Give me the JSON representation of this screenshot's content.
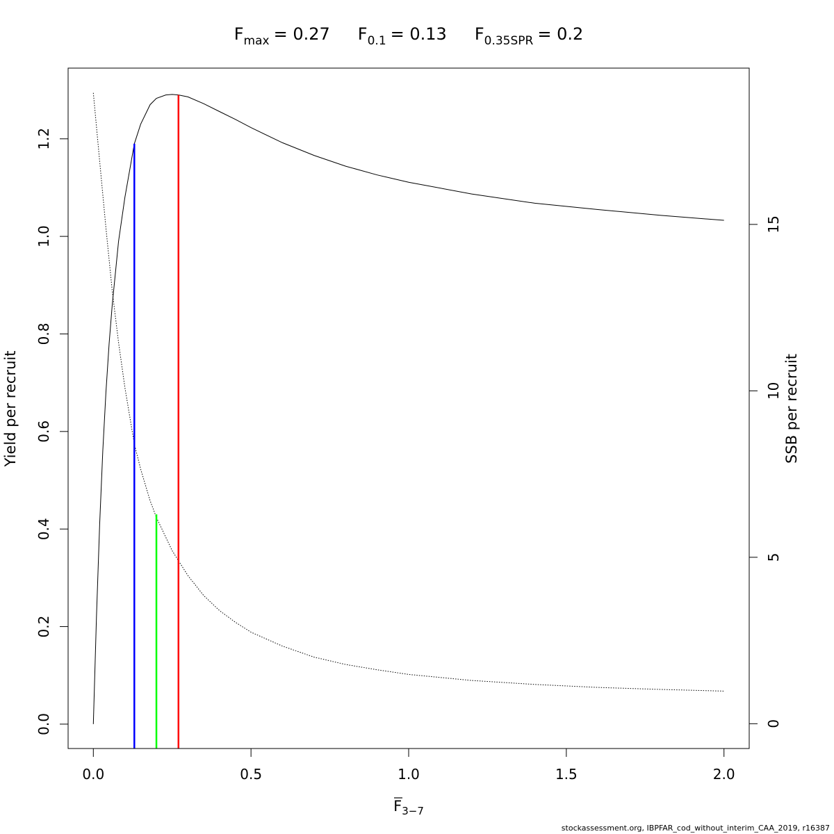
{
  "chart_data": {
    "type": "line",
    "title": {
      "fmax": {
        "base": "F",
        "sub": "max",
        "value": "= 0.27"
      },
      "f01": {
        "base": "F",
        "sub": "0.1",
        "value": "= 0.13"
      },
      "fspr": {
        "base": "F",
        "sub": "0.35SPR",
        "value": "= 0.2"
      }
    },
    "xlabel": {
      "base": "F",
      "sub": "3−7"
    },
    "ylabel": "Yield per recruit",
    "y2label": "SSB per recruit",
    "xlim": [
      -0.08,
      2.08
    ],
    "ylim": [
      -0.05,
      1.345
    ],
    "y2lim": [
      -0.745,
      19.695
    ],
    "x_ticks": [
      {
        "value": 0.0,
        "label": "0.0"
      },
      {
        "value": 0.5,
        "label": "0.5"
      },
      {
        "value": 1.0,
        "label": "1.0"
      },
      {
        "value": 1.5,
        "label": "1.5"
      },
      {
        "value": 2.0,
        "label": "2.0"
      }
    ],
    "y_ticks": [
      {
        "value": 0.0,
        "label": "0.0"
      },
      {
        "value": 0.2,
        "label": "0.2"
      },
      {
        "value": 0.4,
        "label": "0.4"
      },
      {
        "value": 0.6,
        "label": "0.6"
      },
      {
        "value": 0.8,
        "label": "0.8"
      },
      {
        "value": 1.0,
        "label": "1.0"
      },
      {
        "value": 1.2,
        "label": "1.2"
      }
    ],
    "y2_ticks": [
      {
        "value": 0,
        "label": "0"
      },
      {
        "value": 5,
        "label": "5"
      },
      {
        "value": 10,
        "label": "10"
      },
      {
        "value": 15,
        "label": "15"
      }
    ],
    "series": [
      {
        "style": "solid",
        "axis": "left",
        "color": "#000000",
        "x": [
          0,
          0.01,
          0.02,
          0.03,
          0.04,
          0.05,
          0.06,
          0.08,
          0.1,
          0.13,
          0.15,
          0.18,
          0.2,
          0.23,
          0.25,
          0.27,
          0.3,
          0.35,
          0.4,
          0.45,
          0.5,
          0.6,
          0.7,
          0.8,
          0.9,
          1.0,
          1.2,
          1.4,
          1.6,
          1.8,
          2.0
        ],
        "y": [
          0.0,
          0.22,
          0.41,
          0.56,
          0.68,
          0.78,
          0.86,
          0.99,
          1.08,
          1.19,
          1.23,
          1.27,
          1.283,
          1.29,
          1.291,
          1.29,
          1.286,
          1.272,
          1.256,
          1.24,
          1.223,
          1.192,
          1.166,
          1.144,
          1.126,
          1.111,
          1.087,
          1.068,
          1.055,
          1.043,
          1.033
        ]
      },
      {
        "style": "dotted",
        "axis": "right",
        "color": "#000000",
        "x": [
          0,
          0.02,
          0.04,
          0.06,
          0.08,
          0.1,
          0.13,
          0.15,
          0.18,
          0.2,
          0.25,
          0.3,
          0.35,
          0.4,
          0.45,
          0.5,
          0.6,
          0.7,
          0.8,
          0.9,
          1.0,
          1.2,
          1.4,
          1.6,
          1.8,
          2.0
        ],
        "y": [
          18.95,
          16.9,
          14.9,
          13.0,
          11.45,
          10.1,
          8.4,
          7.65,
          6.7,
          6.2,
          5.2,
          4.45,
          3.85,
          3.4,
          3.05,
          2.75,
          2.33,
          2.0,
          1.78,
          1.62,
          1.48,
          1.3,
          1.18,
          1.09,
          1.03,
          0.98
        ]
      }
    ],
    "reference_lines": [
      {
        "name": "F0.1",
        "x": 0.13,
        "y_top": 1.19,
        "color": "#0000FF"
      },
      {
        "name": "F0.35SPR",
        "x": 0.2,
        "y_top": 0.43,
        "color": "#00FF00"
      },
      {
        "name": "Fmax",
        "x": 0.27,
        "y_top": 1.29,
        "color": "#FF0000"
      }
    ]
  },
  "footer": "stockassessment.org, IBPFAR_cod_without_interim_CAA_2019, r16387"
}
